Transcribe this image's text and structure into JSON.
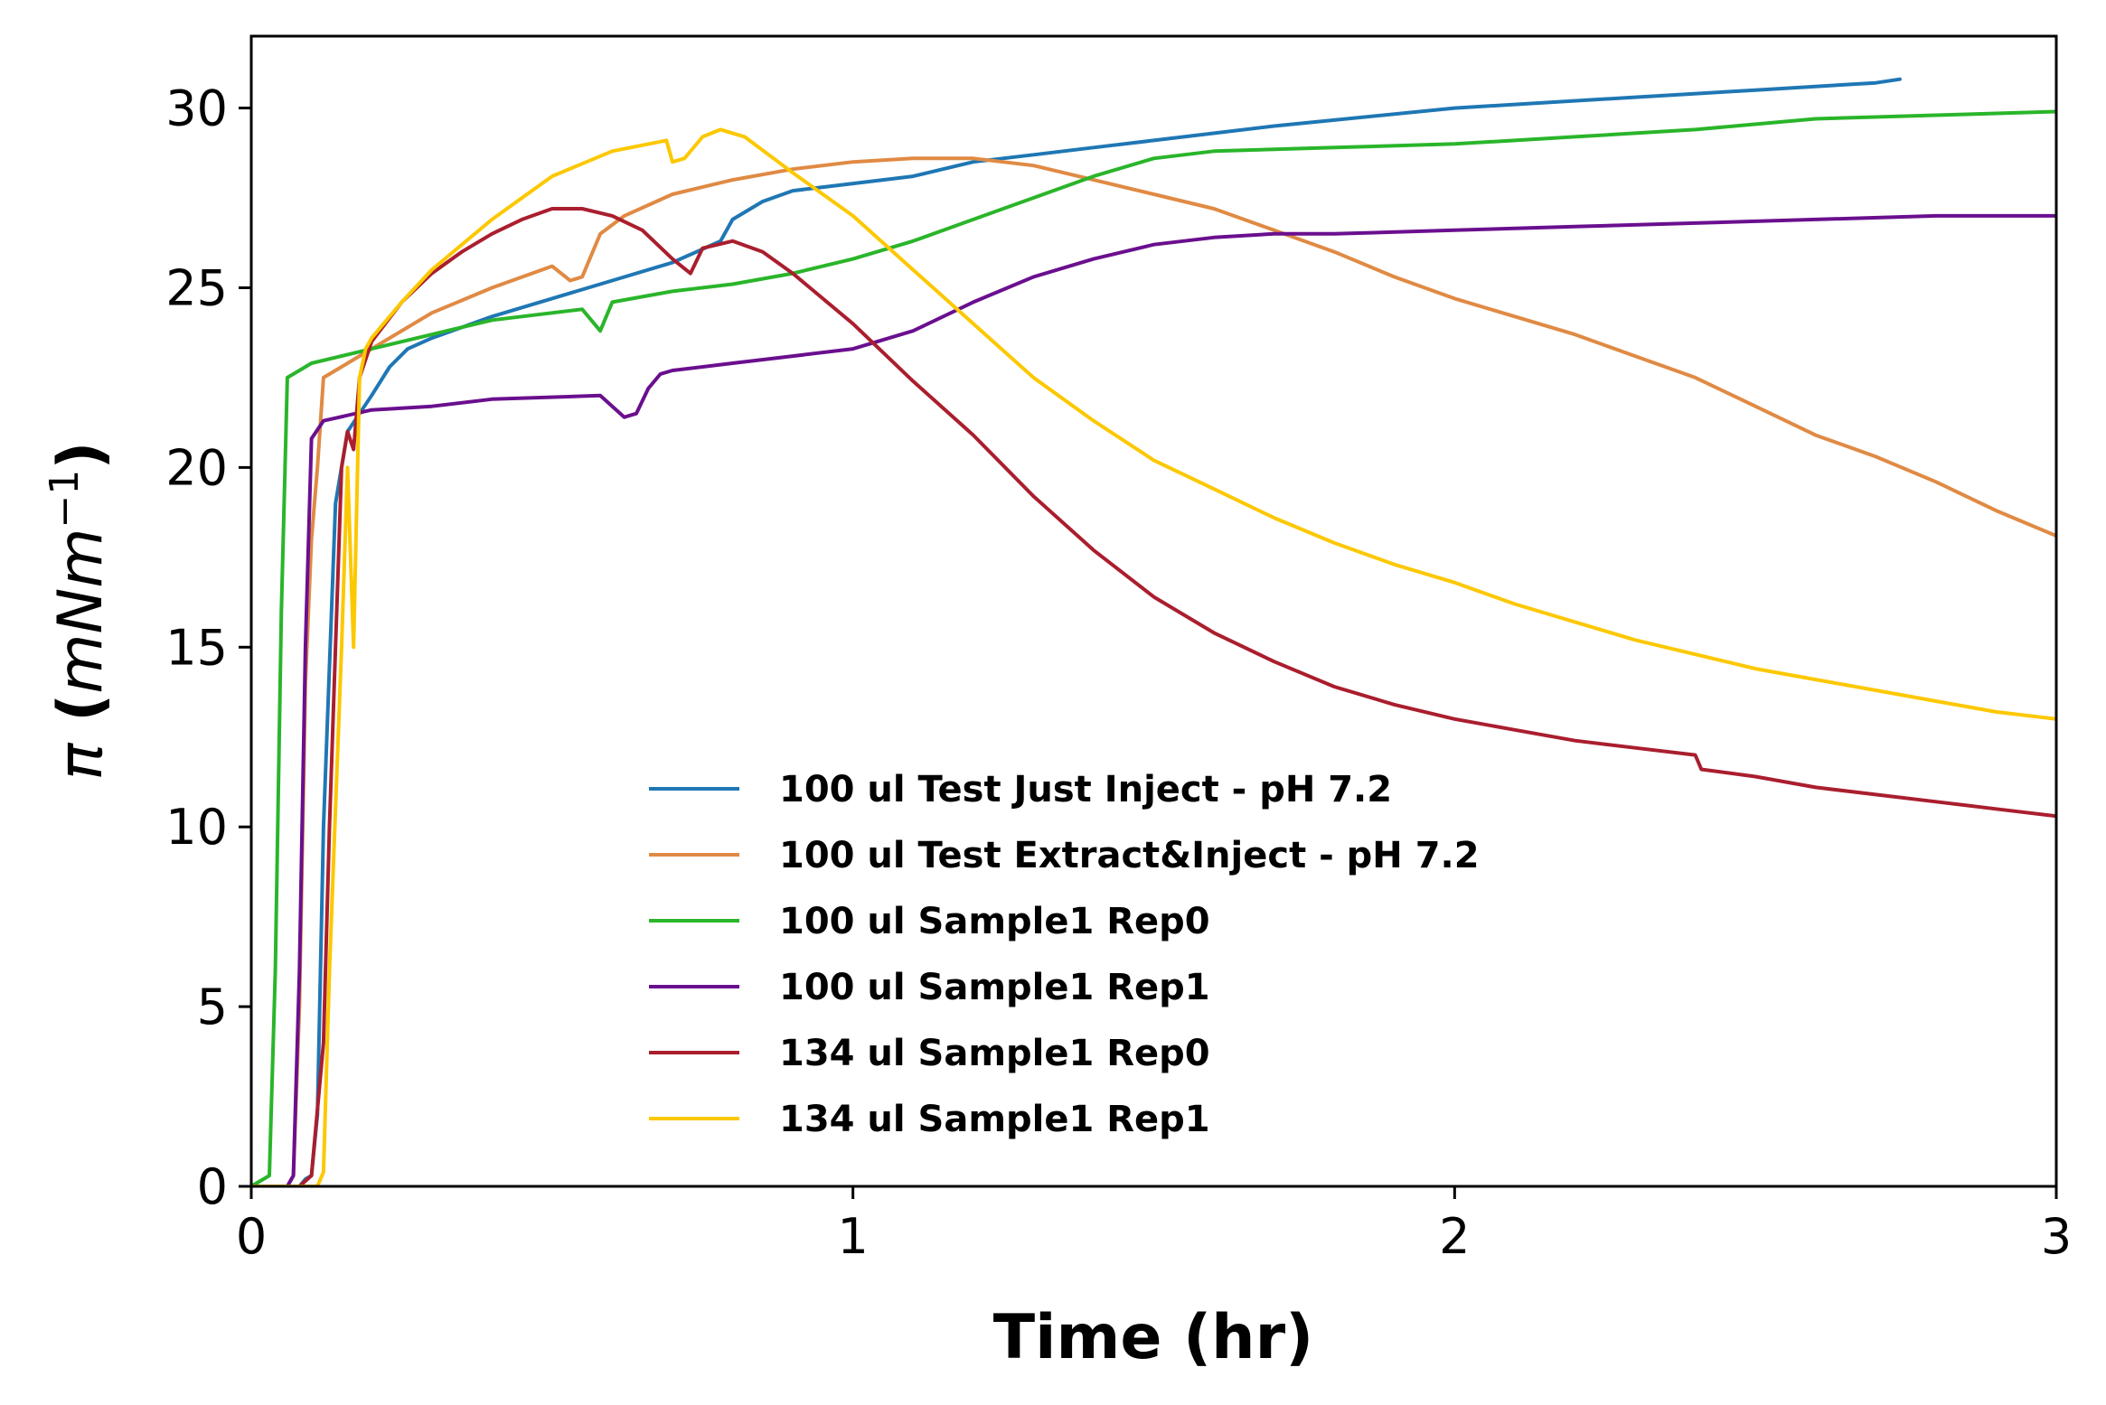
{
  "chart_data": {
    "type": "line",
    "title": "",
    "xlabel": "Time (hr)",
    "ylabel_symbol": "π",
    "ylabel_open": " (",
    "ylabel_unit_base": "mNm",
    "ylabel_unit_exp": "−1",
    "ylabel_close": ")",
    "xlim": [
      0,
      3
    ],
    "ylim": [
      0,
      32
    ],
    "xticks": [
      0,
      1,
      2,
      3
    ],
    "yticks": [
      0,
      5,
      10,
      15,
      20,
      25,
      30
    ],
    "grid": false,
    "legend_position": "lower-center",
    "series": [
      {
        "name": "100 ul Test Just Inject - pH 7.2",
        "color": "#1f77b4",
        "x": [
          0,
          0.08,
          0.09,
          0.1,
          0.11,
          0.12,
          0.14,
          0.16,
          0.18,
          0.2,
          0.23,
          0.26,
          0.3,
          0.4,
          0.5,
          0.6,
          0.7,
          0.78,
          0.8,
          0.85,
          0.9,
          0.95,
          1.0,
          1.1,
          1.2,
          1.3,
          1.4,
          1.5,
          1.7,
          2.0,
          2.3,
          2.5,
          2.7,
          2.74
        ],
        "y": [
          0,
          0,
          0.2,
          0.3,
          2,
          10,
          19,
          21,
          21.5,
          22,
          22.8,
          23.3,
          23.6,
          24.2,
          24.7,
          25.2,
          25.7,
          26.3,
          26.9,
          27.4,
          27.7,
          27.8,
          27.9,
          28.1,
          28.5,
          28.7,
          28.9,
          29.1,
          29.5,
          30.0,
          30.3,
          30.5,
          30.7,
          30.8
        ]
      },
      {
        "name": "100 ul Test Extract&Inject - pH 7.2",
        "color": "#e08a44",
        "x": [
          0,
          0.06,
          0.07,
          0.08,
          0.09,
          0.1,
          0.11,
          0.12,
          0.15,
          0.2,
          0.3,
          0.4,
          0.5,
          0.53,
          0.55,
          0.58,
          0.62,
          0.7,
          0.8,
          0.9,
          1.0,
          1.1,
          1.2,
          1.3,
          1.4,
          1.5,
          1.6,
          1.7,
          1.8,
          1.9,
          2.0,
          2.1,
          2.2,
          2.3,
          2.4,
          2.5,
          2.6,
          2.7,
          2.8,
          2.9,
          3.0
        ],
        "y": [
          0,
          0,
          0.3,
          5,
          14,
          18,
          20,
          22.5,
          22.8,
          23.3,
          24.3,
          25.0,
          25.6,
          25.2,
          25.3,
          26.5,
          27.0,
          27.6,
          28.0,
          28.3,
          28.5,
          28.6,
          28.6,
          28.4,
          28.0,
          27.6,
          27.2,
          26.6,
          26.0,
          25.3,
          24.7,
          24.2,
          23.7,
          23.1,
          22.5,
          21.7,
          20.9,
          20.3,
          19.6,
          18.8,
          18.1
        ]
      },
      {
        "name": "100 ul Sample1 Rep0",
        "color": "#2ab52a",
        "x": [
          0,
          0.03,
          0.04,
          0.05,
          0.06,
          0.08,
          0.1,
          0.2,
          0.3,
          0.4,
          0.55,
          0.58,
          0.6,
          0.7,
          0.8,
          0.9,
          1.0,
          1.1,
          1.2,
          1.3,
          1.4,
          1.5,
          1.6,
          1.8,
          2.0,
          2.2,
          2.4,
          2.6,
          2.8,
          3.0
        ],
        "y": [
          0,
          0.3,
          6,
          16,
          22.5,
          22.7,
          22.9,
          23.3,
          23.7,
          24.1,
          24.4,
          23.8,
          24.6,
          24.9,
          25.1,
          25.4,
          25.8,
          26.3,
          26.9,
          27.5,
          28.1,
          28.6,
          28.8,
          28.9,
          29.0,
          29.2,
          29.4,
          29.7,
          29.8,
          29.9
        ]
      },
      {
        "name": "100 ul Sample1 Rep1",
        "color": "#6a0f8e",
        "x": [
          0,
          0.06,
          0.07,
          0.08,
          0.09,
          0.1,
          0.12,
          0.2,
          0.3,
          0.4,
          0.58,
          0.62,
          0.64,
          0.66,
          0.68,
          0.7,
          0.8,
          0.9,
          1.0,
          1.1,
          1.2,
          1.3,
          1.4,
          1.5,
          1.6,
          1.7,
          1.8,
          2.0,
          2.2,
          2.4,
          2.6,
          2.8,
          3.0
        ],
        "y": [
          0,
          0,
          0.3,
          6,
          15,
          20.8,
          21.3,
          21.6,
          21.7,
          21.9,
          22.0,
          21.4,
          21.5,
          22.2,
          22.6,
          22.7,
          22.9,
          23.1,
          23.3,
          23.8,
          24.6,
          25.3,
          25.8,
          26.2,
          26.4,
          26.5,
          26.5,
          26.6,
          26.7,
          26.8,
          26.9,
          27.0,
          27.0
        ]
      },
      {
        "name": "134 ul Sample1 Rep0",
        "color": "#aa1e2e",
        "x": [
          0,
          0.08,
          0.1,
          0.12,
          0.13,
          0.15,
          0.16,
          0.17,
          0.18,
          0.2,
          0.25,
          0.3,
          0.35,
          0.4,
          0.45,
          0.5,
          0.55,
          0.6,
          0.65,
          0.7,
          0.73,
          0.75,
          0.8,
          0.85,
          0.9,
          1.0,
          1.1,
          1.2,
          1.3,
          1.4,
          1.5,
          1.6,
          1.7,
          1.8,
          1.9,
          2.0,
          2.1,
          2.2,
          2.3,
          2.4,
          2.41,
          2.5,
          2.6,
          2.7,
          2.8,
          2.9,
          3.0
        ],
        "y": [
          0,
          0,
          0.3,
          4,
          10,
          20,
          21,
          20.5,
          22.5,
          23.5,
          24.6,
          25.4,
          26.0,
          26.5,
          26.9,
          27.2,
          27.2,
          27.0,
          26.6,
          25.8,
          25.4,
          26.1,
          26.3,
          26.0,
          25.4,
          24.0,
          22.4,
          20.9,
          19.2,
          17.7,
          16.4,
          15.4,
          14.6,
          13.9,
          13.4,
          13.0,
          12.7,
          12.4,
          12.2,
          12.0,
          11.6,
          11.4,
          11.1,
          10.9,
          10.7,
          10.5,
          10.3
        ]
      },
      {
        "name": "134 ul Sample1 Rep1",
        "color": "#fcc800",
        "x": [
          0,
          0.11,
          0.12,
          0.13,
          0.15,
          0.16,
          0.17,
          0.18,
          0.19,
          0.2,
          0.25,
          0.3,
          0.4,
          0.5,
          0.6,
          0.69,
          0.7,
          0.72,
          0.75,
          0.78,
          0.82,
          0.9,
          1.0,
          1.1,
          1.2,
          1.3,
          1.4,
          1.5,
          1.6,
          1.7,
          1.8,
          1.9,
          2.0,
          2.1,
          2.2,
          2.3,
          2.4,
          2.5,
          2.6,
          2.7,
          2.8,
          2.9,
          3.0
        ],
        "y": [
          0,
          0,
          0.4,
          6,
          15,
          20,
          15,
          22.5,
          23.3,
          23.6,
          24.6,
          25.5,
          26.9,
          28.1,
          28.8,
          29.1,
          28.5,
          28.6,
          29.2,
          29.4,
          29.2,
          28.2,
          27.0,
          25.5,
          24.0,
          22.5,
          21.3,
          20.2,
          19.4,
          18.6,
          17.9,
          17.3,
          16.8,
          16.2,
          15.7,
          15.2,
          14.8,
          14.4,
          14.1,
          13.8,
          13.5,
          13.2,
          13.0
        ]
      }
    ]
  }
}
